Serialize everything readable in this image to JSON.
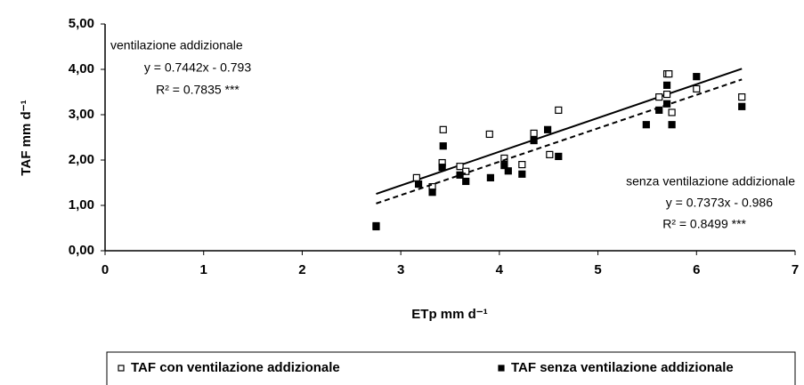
{
  "chart_data": {
    "type": "scatter",
    "x_label": "ETp mm d⁻¹",
    "y_label": "TAF mm d⁻¹",
    "xlim": [
      0,
      7
    ],
    "xticks": [
      0,
      1,
      2,
      3,
      4,
      5,
      6,
      7
    ],
    "ylim": [
      0,
      5
    ],
    "yticks": [
      {
        "value": 0,
        "label": "0,00"
      },
      {
        "value": 1,
        "label": "1,00"
      },
      {
        "value": 2,
        "label": "2,00"
      },
      {
        "value": 3,
        "label": "3,00"
      },
      {
        "value": 4,
        "label": "4,00"
      },
      {
        "value": 5,
        "label": "5,00"
      }
    ],
    "grid": false,
    "legend": "bottom",
    "series": [
      {
        "name": "TAF con ventilazione addizionale",
        "color": "#000000",
        "marker": "open-square",
        "x": [
          2.75,
          3.16,
          3.32,
          3.43,
          3.42,
          3.6,
          3.66,
          3.9,
          4.05,
          4.23,
          4.35,
          4.51,
          4.6,
          5.62,
          5.7,
          5.72,
          5.7,
          5.75,
          6.0,
          6.46
        ],
        "values": [
          0.55,
          1.61,
          1.41,
          2.67,
          1.94,
          1.86,
          1.75,
          2.57,
          2.04,
          1.9,
          2.59,
          2.12,
          3.1,
          3.39,
          3.9,
          3.9,
          3.45,
          3.05,
          3.57,
          3.39
        ],
        "trend": {
          "slope": 0.7442,
          "intercept": -0.793,
          "dash": false
        },
        "annotation": [
          "ventilazione addizionale",
          "y = 0.7442x - 0.793",
          "R² = 0.7835 ***"
        ]
      },
      {
        "name": "TAF senza ventilazione addizionale",
        "color": "#000000",
        "marker": "filled-square",
        "x": [
          2.75,
          3.18,
          3.32,
          3.42,
          3.43,
          3.6,
          3.66,
          3.91,
          4.05,
          4.09,
          4.23,
          4.35,
          4.49,
          4.6,
          5.49,
          5.62,
          5.7,
          5.7,
          5.75,
          6.0,
          6.46
        ],
        "values": [
          0.53,
          1.47,
          1.29,
          1.84,
          2.31,
          1.67,
          1.53,
          1.61,
          1.88,
          1.76,
          1.69,
          2.43,
          2.67,
          2.08,
          2.78,
          3.1,
          3.65,
          3.24,
          2.78,
          3.84,
          3.18
        ],
        "trend": {
          "slope": 0.7373,
          "intercept": -0.986,
          "dash": true
        },
        "annotation": [
          "senza ventilazione addizionale",
          "y = 0.7373x - 0.986",
          "R² = 0.8499 ***"
        ]
      }
    ]
  }
}
